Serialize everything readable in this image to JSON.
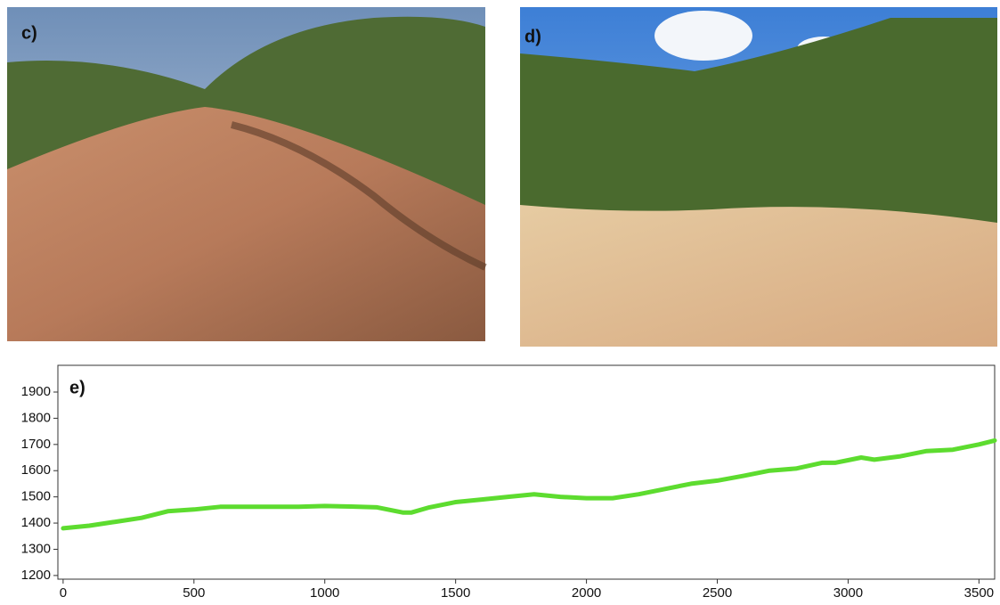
{
  "panels": [
    "c)",
    "d)"
  ],
  "chart_data": {
    "type": "line",
    "title": "e)",
    "x": [
      0,
      100,
      200,
      300,
      400,
      500,
      600,
      700,
      800,
      900,
      1000,
      1100,
      1200,
      1300,
      1330,
      1400,
      1500,
      1600,
      1700,
      1800,
      1900,
      2000,
      2100,
      2200,
      2300,
      2400,
      2500,
      2600,
      2700,
      2800,
      2900,
      2950,
      3000,
      3050,
      3100,
      3200,
      3300,
      3400,
      3500,
      3560
    ],
    "values": [
      1380,
      1390,
      1405,
      1420,
      1445,
      1452,
      1462,
      1462,
      1462,
      1462,
      1465,
      1463,
      1460,
      1440,
      1440,
      1460,
      1480,
      1490,
      1500,
      1510,
      1500,
      1495,
      1495,
      1510,
      1530,
      1550,
      1562,
      1580,
      1600,
      1608,
      1630,
      1630,
      1640,
      1650,
      1642,
      1655,
      1675,
      1680,
      1700,
      1715
    ],
    "color": "#5ddc2f",
    "xlim": [
      -20,
      3560
    ],
    "xticks": [
      0,
      500,
      1000,
      1500,
      2000,
      2500,
      3000,
      3500
    ],
    "ylim": [
      1186,
      2002
    ],
    "yticks": [
      1200,
      1300,
      1400,
      1500,
      1600,
      1700,
      1800,
      1900
    ]
  }
}
